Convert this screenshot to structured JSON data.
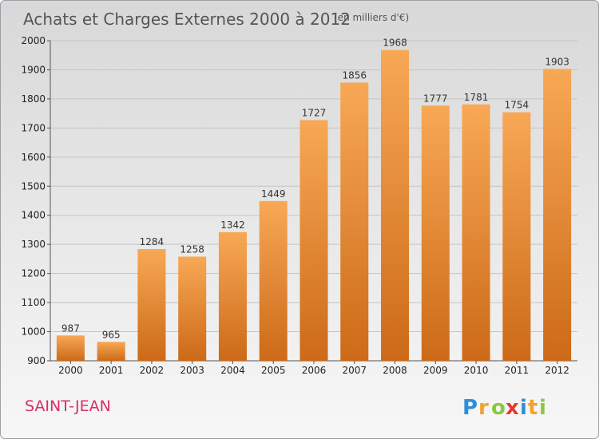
{
  "chart_data": {
    "type": "bar",
    "title": "Achats et Charges Externes 2000 à 2012",
    "subtitle": "(en milliers d'€)",
    "categories": [
      "2000",
      "2001",
      "2002",
      "2003",
      "2004",
      "2005",
      "2006",
      "2007",
      "2008",
      "2009",
      "2010",
      "2011",
      "2012"
    ],
    "values": [
      987,
      965,
      1284,
      1258,
      1342,
      1449,
      1727,
      1856,
      1968,
      1777,
      1781,
      1754,
      1903
    ],
    "ylim": [
      900,
      2000
    ],
    "yticks": [
      900,
      1000,
      1100,
      1200,
      1300,
      1400,
      1500,
      1600,
      1700,
      1800,
      1900,
      2000
    ],
    "grid": true,
    "bar_color_top": "#f8a855",
    "bar_color_bottom": "#cc6a18"
  },
  "footer": {
    "place": "SAINT-JEAN",
    "logo": "Proxiti"
  }
}
